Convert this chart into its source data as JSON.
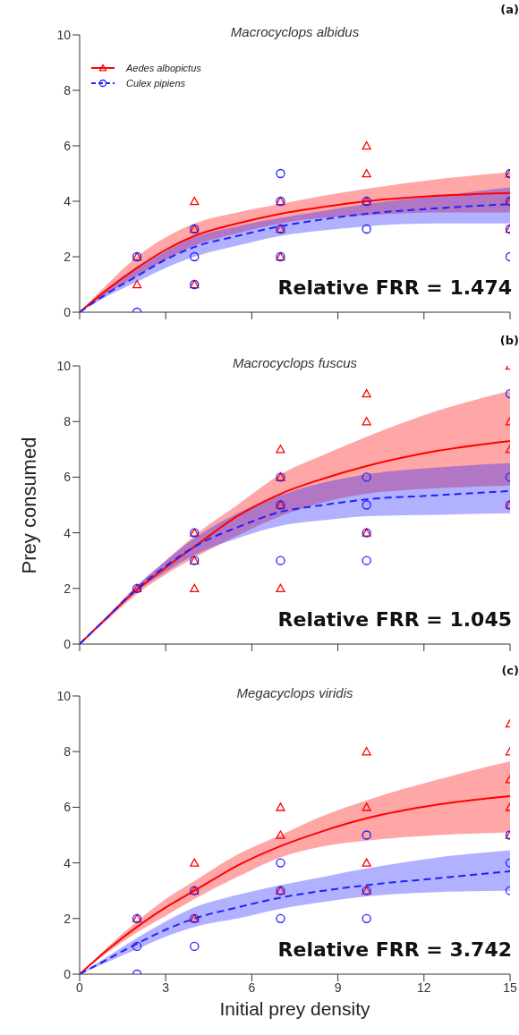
{
  "chart_data": [
    {
      "type": "scatter",
      "title": "Macrocyclops albidus",
      "annotations": [
        "(a)",
        "Relative FRR = 1.474"
      ],
      "xlim": [
        0,
        15
      ],
      "xticks": [
        0,
        3,
        6,
        9,
        12,
        15
      ],
      "ylim": [
        0,
        10
      ],
      "yticks": [
        0,
        2,
        4,
        6,
        8,
        10
      ],
      "tick_labels": "y",
      "legend": "top left",
      "series": [
        {
          "type": "line",
          "name": "Aedes albopictus",
          "color": "#ff0000",
          "line_style": "solid",
          "x": [
            0,
            1,
            2,
            3,
            4,
            5.5,
            7,
            8.5,
            10,
            12.5,
            15
          ],
          "values": [
            0,
            0.85,
            1.6,
            2.25,
            2.75,
            3.2,
            3.55,
            3.8,
            4.0,
            4.2,
            4.3
          ],
          "lower": [
            0,
            0.7,
            1.3,
            1.9,
            2.4,
            2.85,
            3.2,
            3.4,
            3.5,
            3.6,
            3.6
          ],
          "upper": [
            0,
            1.05,
            2.0,
            2.7,
            3.2,
            3.6,
            3.9,
            4.2,
            4.45,
            4.8,
            5.05
          ]
        },
        {
          "type": "line",
          "name": "Culex pipiens",
          "color": "#2020ff",
          "line_style": "dashed",
          "x": [
            0,
            1,
            2,
            3,
            4,
            5.5,
            7,
            8.5,
            10,
            12.5,
            15
          ],
          "values": [
            0,
            0.7,
            1.3,
            1.9,
            2.35,
            2.75,
            3.1,
            3.35,
            3.55,
            3.75,
            3.9
          ],
          "lower": [
            0,
            0.6,
            1.1,
            1.6,
            2.0,
            2.4,
            2.75,
            2.95,
            3.1,
            3.2,
            3.2
          ],
          "upper": [
            0,
            0.85,
            1.6,
            2.2,
            2.7,
            3.1,
            3.4,
            3.65,
            3.9,
            4.2,
            4.5
          ]
        },
        {
          "color": "#ff0000",
          "marker": "triangle",
          "x": [
            2,
            2,
            4,
            4,
            4,
            7,
            7,
            7,
            10,
            10,
            10,
            15,
            15,
            15
          ],
          "values": [
            2,
            1,
            4,
            3,
            1,
            4,
            3,
            2,
            6,
            5,
            4,
            5,
            4,
            3
          ]
        },
        {
          "color": "#2020ff",
          "marker": "circle",
          "x": [
            2,
            2,
            4,
            4,
            4,
            7,
            7,
            7,
            7,
            10,
            10,
            15,
            15,
            15,
            15
          ],
          "values": [
            2,
            0,
            3,
            2,
            1,
            5,
            4,
            3,
            2,
            4,
            3,
            5,
            4,
            3,
            2
          ]
        }
      ]
    },
    {
      "type": "scatter",
      "title": "Macrocyclops fuscus",
      "ylabel": "Prey consumed",
      "annotations": [
        "(b)",
        "Relative FRR = 1.045"
      ],
      "xlim": [
        0,
        15
      ],
      "xticks": [
        0,
        3,
        6,
        9,
        12,
        15
      ],
      "ylim": [
        0,
        10
      ],
      "yticks": [
        0,
        2,
        4,
        6,
        8,
        10
      ],
      "tick_labels": "y",
      "series": [
        {
          "type": "line",
          "color": "#ff0000",
          "line_style": "solid",
          "x": [
            0,
            1,
            2,
            3,
            4,
            5.5,
            7,
            8.5,
            10,
            12.5,
            15
          ],
          "values": [
            0,
            1.0,
            1.95,
            2.75,
            3.5,
            4.6,
            5.4,
            5.95,
            6.4,
            6.95,
            7.3
          ],
          "lower": [
            0,
            0.9,
            1.8,
            2.5,
            3.1,
            3.9,
            4.6,
            5.1,
            5.4,
            5.6,
            5.7
          ],
          "upper": [
            0,
            1.05,
            2.1,
            3.0,
            3.9,
            5.0,
            6.1,
            6.8,
            7.45,
            8.4,
            9.1
          ]
        },
        {
          "type": "line",
          "color": "#2020ff",
          "line_style": "dashed",
          "x": [
            0,
            1,
            2,
            3,
            4,
            5.5,
            7,
            8.5,
            10,
            12.5,
            15
          ],
          "values": [
            0,
            1.0,
            2.0,
            2.8,
            3.5,
            4.2,
            4.75,
            5.0,
            5.2,
            5.35,
            5.5
          ],
          "lower": [
            0,
            0.95,
            1.9,
            2.6,
            3.2,
            3.8,
            4.25,
            4.45,
            4.6,
            4.65,
            4.7
          ],
          "upper": [
            0,
            1.05,
            2.1,
            3.0,
            3.8,
            4.7,
            5.35,
            5.8,
            6.1,
            6.35,
            6.5
          ]
        },
        {
          "color": "#ff0000",
          "marker": "triangle",
          "x": [
            2,
            4,
            4,
            4,
            7,
            7,
            7,
            7,
            10,
            10,
            10,
            15,
            15,
            15,
            15
          ],
          "values": [
            2,
            4,
            3,
            2,
            7,
            6,
            5,
            2,
            9,
            8,
            4,
            10,
            8,
            7,
            5
          ]
        },
        {
          "color": "#2020ff",
          "marker": "circle",
          "x": [
            2,
            4,
            4,
            7,
            7,
            7,
            10,
            10,
            10,
            10,
            15,
            15,
            15
          ],
          "values": [
            2,
            4,
            3,
            6,
            5,
            3,
            6,
            5,
            4,
            3,
            9,
            6,
            5
          ]
        }
      ]
    },
    {
      "type": "scatter",
      "title": "Megacyclops viridis",
      "xlabel": "Initial prey density",
      "annotations": [
        "(c)",
        "Relative FRR = 3.742"
      ],
      "xlim": [
        0,
        15
      ],
      "xticks": [
        0,
        3,
        6,
        9,
        12,
        15
      ],
      "ylim": [
        0,
        10
      ],
      "yticks": [
        0,
        2,
        4,
        6,
        8,
        10
      ],
      "series": [
        {
          "type": "line",
          "color": "#ff0000",
          "line_style": "solid",
          "x": [
            0,
            1,
            2,
            3,
            4,
            5.5,
            7,
            8.5,
            10,
            12.5,
            15
          ],
          "values": [
            0,
            0.9,
            1.7,
            2.4,
            3.0,
            3.9,
            4.6,
            5.15,
            5.6,
            6.1,
            6.4
          ],
          "lower": [
            0,
            0.8,
            1.5,
            2.1,
            2.7,
            3.5,
            4.2,
            4.6,
            4.8,
            5.0,
            5.1
          ],
          "upper": [
            0,
            1.0,
            1.9,
            2.7,
            3.35,
            4.3,
            5.0,
            5.7,
            6.25,
            7.0,
            7.65
          ]
        },
        {
          "type": "line",
          "color": "#2020ff",
          "line_style": "dashed",
          "x": [
            0,
            1,
            2,
            3,
            4,
            5.5,
            7,
            8.5,
            10,
            12.5,
            15
          ],
          "values": [
            0,
            0.55,
            1.1,
            1.6,
            2.0,
            2.4,
            2.75,
            3.0,
            3.2,
            3.45,
            3.7
          ],
          "lower": [
            0,
            0.45,
            0.9,
            1.35,
            1.7,
            2.0,
            2.35,
            2.6,
            2.8,
            2.95,
            3.0
          ],
          "upper": [
            0,
            0.65,
            1.3,
            1.9,
            2.4,
            2.85,
            3.2,
            3.5,
            3.8,
            4.2,
            4.45
          ]
        },
        {
          "color": "#ff0000",
          "marker": "triangle",
          "x": [
            2,
            4,
            4,
            4,
            7,
            7,
            7,
            10,
            10,
            10,
            10,
            15,
            15,
            15,
            15,
            15
          ],
          "values": [
            2,
            4,
            3,
            2,
            6,
            5,
            3,
            8,
            6,
            4,
            3,
            9,
            8,
            7,
            6,
            5
          ]
        },
        {
          "color": "#2020ff",
          "marker": "circle",
          "x": [
            2,
            2,
            2,
            4,
            4,
            4,
            7,
            7,
            7,
            10,
            10,
            10,
            15,
            15,
            15
          ],
          "values": [
            2,
            1,
            0,
            3,
            2,
            1,
            4,
            3,
            2,
            5,
            3,
            2,
            5,
            4,
            3
          ]
        }
      ]
    }
  ]
}
